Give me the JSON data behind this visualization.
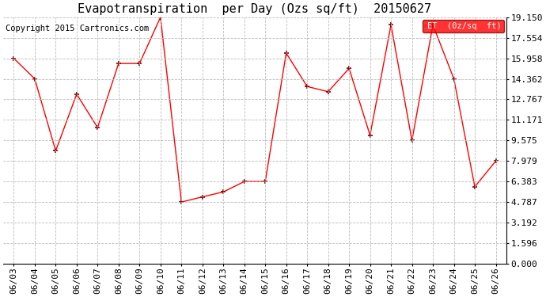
{
  "title": "Evapotranspiration  per Day (Ozs sq/ft)  20150627",
  "copyright": "Copyright 2015 Cartronics.com",
  "legend_label": "ET  (0z/sq  ft)",
  "dates": [
    "06/03",
    "06/04",
    "06/05",
    "06/06",
    "06/07",
    "06/08",
    "06/09",
    "06/10",
    "06/11",
    "06/12",
    "06/13",
    "06/14",
    "06/15",
    "06/16",
    "06/17",
    "06/18",
    "06/19",
    "06/20",
    "06/21",
    "06/22",
    "06/23",
    "06/24",
    "06/25",
    "06/26"
  ],
  "values": [
    15.958,
    14.362,
    8.767,
    13.171,
    10.575,
    15.554,
    15.554,
    19.15,
    4.787,
    5.191,
    5.575,
    6.383,
    6.383,
    16.362,
    13.767,
    13.363,
    15.171,
    9.979,
    18.554,
    9.575,
    18.554,
    14.362,
    5.975,
    7.979
  ],
  "ylim": [
    0.0,
    19.15
  ],
  "yticks": [
    0.0,
    1.596,
    3.192,
    4.787,
    6.383,
    7.979,
    9.575,
    11.171,
    12.767,
    14.362,
    15.958,
    17.554,
    19.15
  ],
  "line_color": "red",
  "marker_color": "darkred",
  "background_color": "#ffffff",
  "grid_color": "#bbbbbb",
  "legend_bg": "red",
  "legend_text_color": "white",
  "title_fontsize": 11,
  "tick_fontsize": 8,
  "copyright_fontsize": 7.5
}
